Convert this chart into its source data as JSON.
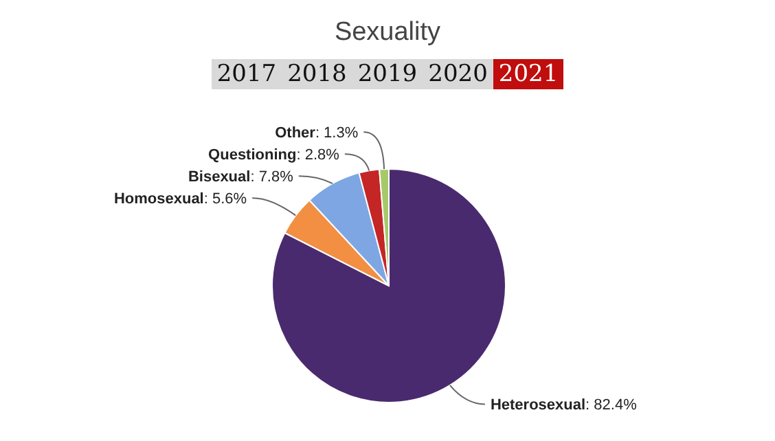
{
  "chart_data": {
    "type": "pie",
    "title": "Sexuality",
    "annotations": [
      "2017",
      "2018",
      "2019",
      "2020",
      "2021"
    ],
    "categories": [
      "Heterosexual",
      "Homosexual",
      "Bisexual",
      "Questioning",
      "Other"
    ],
    "values": [
      82.4,
      5.6,
      7.8,
      2.8,
      1.3
    ],
    "value_labels": [
      ": 82.4%",
      ": 5.6%",
      ": 7.8%",
      ": 2.8%",
      ": 1.3%"
    ],
    "colors": [
      "#4a2a6e",
      "#f28f43",
      "#7ea6e3",
      "#c42525",
      "#a6c96a"
    ],
    "legend": false
  }
}
